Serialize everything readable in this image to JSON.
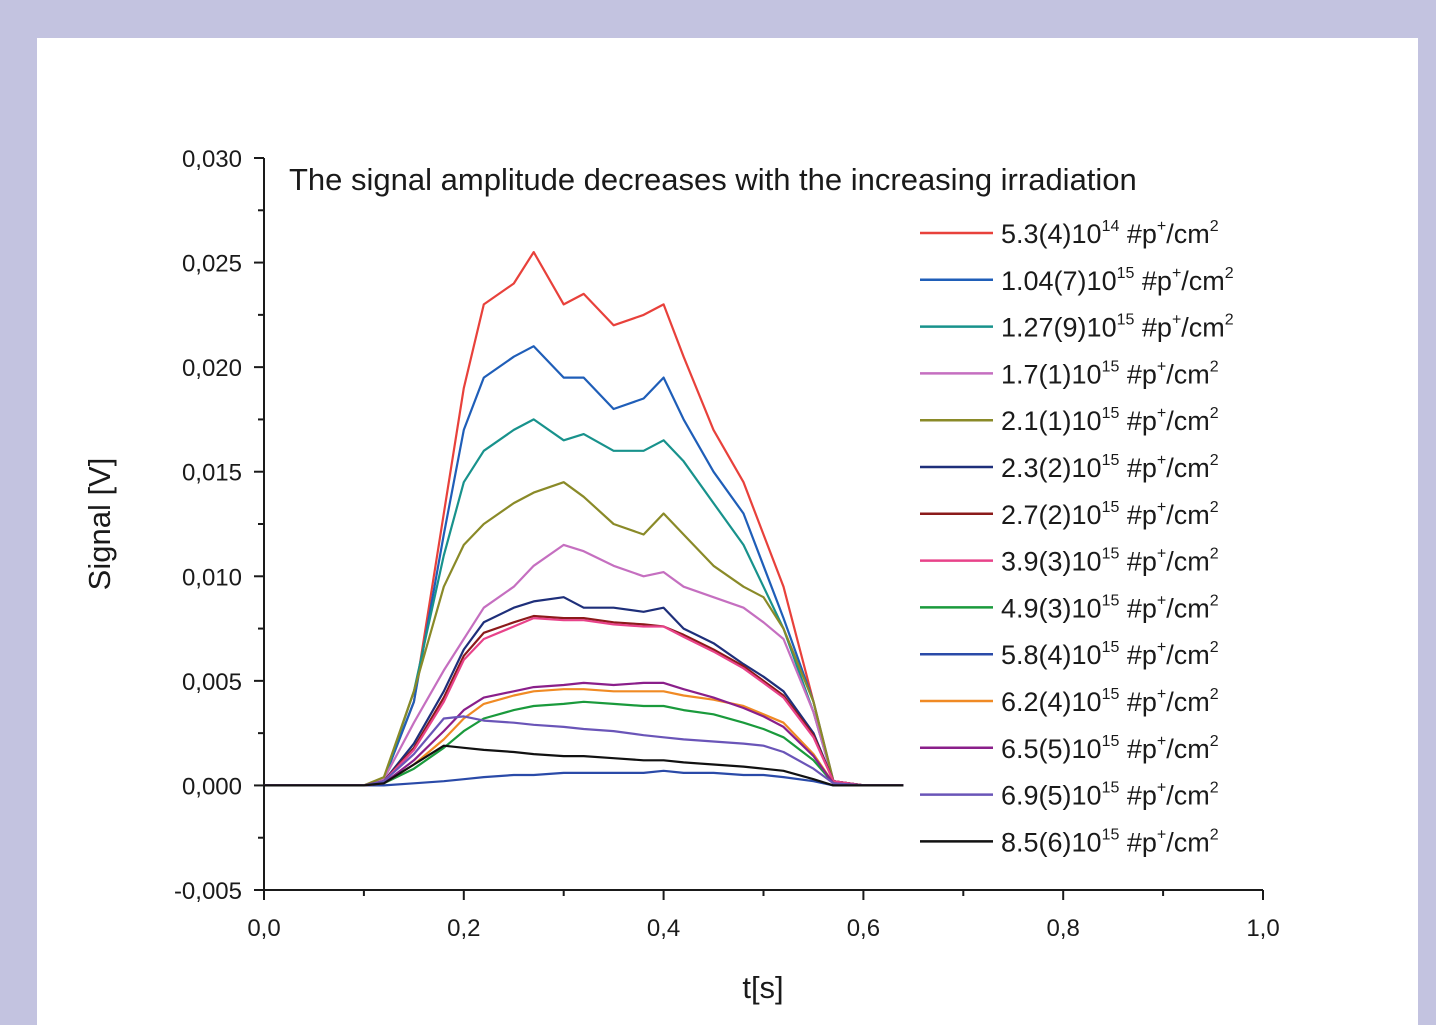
{
  "chart_data": {
    "type": "line",
    "title": "The signal amplitude decreases with the increasing irradiation",
    "xlabel": "t[s]",
    "ylabel": "Signal [V]",
    "xlim": [
      0.0,
      1.0
    ],
    "ylim": [
      -0.005,
      0.03
    ],
    "x_ticks": [
      "0,0",
      "0,2",
      "0,4",
      "0,6",
      "0,8",
      "1,0"
    ],
    "y_ticks": [
      "-0,005",
      "0,000",
      "0,005",
      "0,010",
      "0,015",
      "0,020",
      "0,025",
      "0,030"
    ],
    "legend_position": "right",
    "grid": false,
    "x": [
      0.0,
      0.1,
      0.12,
      0.15,
      0.18,
      0.2,
      0.22,
      0.25,
      0.27,
      0.3,
      0.32,
      0.35,
      0.38,
      0.4,
      0.42,
      0.45,
      0.48,
      0.5,
      0.52,
      0.55,
      0.57,
      0.6,
      0.64
    ],
    "series": [
      {
        "base": "5.3(4)10",
        "exp": "14",
        "unit_pre": " #p",
        "unit_sup": "+",
        "unit_mid": "/cm",
        "unit_sup2": "2",
        "color": "#e8413b",
        "values": [
          0.0,
          0.0,
          0.0003,
          0.004,
          0.013,
          0.019,
          0.023,
          0.024,
          0.0255,
          0.023,
          0.0235,
          0.022,
          0.0225,
          0.023,
          0.0205,
          0.017,
          0.0145,
          0.012,
          0.0095,
          0.004,
          0.0002,
          0.0,
          0.0
        ]
      },
      {
        "base": "1.04(7)10",
        "exp": "15",
        "unit_pre": " #p",
        "unit_sup": "+",
        "unit_mid": "/cm",
        "unit_sup2": "2",
        "color": "#1f5eb8",
        "values": [
          0.0,
          0.0,
          0.0003,
          0.004,
          0.012,
          0.017,
          0.0195,
          0.0205,
          0.021,
          0.0195,
          0.0195,
          0.018,
          0.0185,
          0.0195,
          0.0175,
          0.015,
          0.013,
          0.0105,
          0.008,
          0.004,
          0.0002,
          0.0,
          0.0
        ]
      },
      {
        "base": "1.27(9)10",
        "exp": "15",
        "unit_pre": " #p",
        "unit_sup": "+",
        "unit_mid": "/cm",
        "unit_sup2": "2",
        "color": "#18928c",
        "values": [
          0.0,
          0.0,
          0.0003,
          0.0045,
          0.011,
          0.0145,
          0.016,
          0.017,
          0.0175,
          0.0165,
          0.0168,
          0.016,
          0.016,
          0.0165,
          0.0155,
          0.0135,
          0.0115,
          0.0095,
          0.0075,
          0.0035,
          0.0002,
          0.0,
          0.0
        ]
      },
      {
        "base": "1.7(1)10",
        "exp": "15",
        "unit_pre": " #p",
        "unit_sup": "+",
        "unit_mid": "/cm",
        "unit_sup2": "2",
        "color": "#c56fc0",
        "values": [
          0.0,
          0.0,
          0.0003,
          0.003,
          0.0055,
          0.007,
          0.0085,
          0.0095,
          0.0105,
          0.0115,
          0.0112,
          0.0105,
          0.01,
          0.0102,
          0.0095,
          0.009,
          0.0085,
          0.0078,
          0.007,
          0.0035,
          0.0002,
          0.0,
          0.0
        ]
      },
      {
        "base": "2.1(1)10",
        "exp": "15",
        "unit_pre": " #p",
        "unit_sup": "+",
        "unit_mid": "/cm",
        "unit_sup2": "2",
        "color": "#8a8a28",
        "values": [
          0.0,
          0.0,
          0.0004,
          0.0045,
          0.0095,
          0.0115,
          0.0125,
          0.0135,
          0.014,
          0.0145,
          0.0138,
          0.0125,
          0.012,
          0.013,
          0.012,
          0.0105,
          0.0095,
          0.009,
          0.0075,
          0.004,
          0.0002,
          0.0,
          0.0
        ]
      },
      {
        "base": "2.3(2)10",
        "exp": "15",
        "unit_pre": " #p",
        "unit_sup": "+",
        "unit_mid": "/cm",
        "unit_sup2": "2",
        "color": "#1e2f7a",
        "values": [
          0.0,
          0.0,
          0.0002,
          0.002,
          0.0045,
          0.0065,
          0.0078,
          0.0085,
          0.0088,
          0.009,
          0.0085,
          0.0085,
          0.0083,
          0.0085,
          0.0075,
          0.0068,
          0.0058,
          0.0052,
          0.0045,
          0.0025,
          0.0002,
          0.0,
          0.0
        ]
      },
      {
        "base": "2.7(2)10",
        "exp": "15",
        "unit_pre": " #p",
        "unit_sup": "+",
        "unit_mid": "/cm",
        "unit_sup2": "2",
        "color": "#8b1a1a",
        "values": [
          0.0,
          0.0,
          0.0002,
          0.0018,
          0.0042,
          0.0062,
          0.0073,
          0.0078,
          0.0081,
          0.008,
          0.008,
          0.0078,
          0.0077,
          0.0076,
          0.0072,
          0.0065,
          0.0057,
          0.005,
          0.0043,
          0.0024,
          0.0002,
          0.0,
          0.0
        ]
      },
      {
        "base": "3.9(3)10",
        "exp": "15",
        "unit_pre": " #p",
        "unit_sup": "+",
        "unit_mid": "/cm",
        "unit_sup2": "2",
        "color": "#e8438a",
        "values": [
          0.0,
          0.0,
          0.0002,
          0.0017,
          0.004,
          0.006,
          0.007,
          0.0076,
          0.008,
          0.0079,
          0.0079,
          0.0077,
          0.0076,
          0.0076,
          0.0071,
          0.0064,
          0.0056,
          0.0049,
          0.0042,
          0.0023,
          0.0002,
          0.0,
          0.0
        ]
      },
      {
        "base": "4.9(3)10",
        "exp": "15",
        "unit_pre": " #p",
        "unit_sup": "+",
        "unit_mid": "/cm",
        "unit_sup2": "2",
        "color": "#1a9a3c",
        "values": [
          0.0,
          0.0,
          0.0001,
          0.0008,
          0.0018,
          0.0026,
          0.0032,
          0.0036,
          0.0038,
          0.0039,
          0.004,
          0.0039,
          0.0038,
          0.0038,
          0.0036,
          0.0034,
          0.003,
          0.0027,
          0.0023,
          0.0012,
          0.0001,
          0.0,
          0.0
        ]
      },
      {
        "base": "5.8(4)10",
        "exp": "15",
        "unit_pre": " #p",
        "unit_sup": "+",
        "unit_mid": "/cm",
        "unit_sup2": "2",
        "color": "#2a4aa8",
        "values": [
          0.0,
          0.0,
          0.0,
          0.0001,
          0.0002,
          0.0003,
          0.0004,
          0.0005,
          0.0005,
          0.0006,
          0.0006,
          0.0006,
          0.0006,
          0.0007,
          0.0006,
          0.0006,
          0.0005,
          0.0005,
          0.0004,
          0.0002,
          0.0,
          0.0,
          0.0
        ]
      },
      {
        "base": "6.2(4)10",
        "exp": "15",
        "unit_pre": " #p",
        "unit_sup": "+",
        "unit_mid": "/cm",
        "unit_sup2": "2",
        "color": "#f08a24",
        "values": [
          0.0,
          0.0,
          0.0001,
          0.001,
          0.0022,
          0.0032,
          0.0039,
          0.0043,
          0.0045,
          0.0046,
          0.0046,
          0.0045,
          0.0045,
          0.0045,
          0.0043,
          0.0041,
          0.0038,
          0.0034,
          0.003,
          0.0015,
          0.0001,
          0.0,
          0.0
        ]
      },
      {
        "base": "6.5(5)10",
        "exp": "15",
        "unit_pre": " #p",
        "unit_sup": "+",
        "unit_mid": "/cm",
        "unit_sup2": "2",
        "color": "#8a1f8a",
        "values": [
          0.0,
          0.0,
          0.0001,
          0.0012,
          0.0026,
          0.0036,
          0.0042,
          0.0045,
          0.0047,
          0.0048,
          0.0049,
          0.0048,
          0.0049,
          0.0049,
          0.0046,
          0.0042,
          0.0037,
          0.0033,
          0.0028,
          0.0014,
          0.0001,
          0.0,
          0.0
        ]
      },
      {
        "base": "6.9(5)10",
        "exp": "15",
        "unit_pre": " #p",
        "unit_sup": "+",
        "unit_mid": "/cm",
        "unit_sup2": "2",
        "color": "#6a55b8",
        "values": [
          0.0,
          0.0,
          0.0002,
          0.0015,
          0.0032,
          0.0033,
          0.0031,
          0.003,
          0.0029,
          0.0028,
          0.0027,
          0.0026,
          0.0024,
          0.0023,
          0.0022,
          0.0021,
          0.002,
          0.0019,
          0.0016,
          0.0008,
          0.0001,
          0.0,
          0.0
        ]
      },
      {
        "base": "8.5(6)10",
        "exp": "15",
        "unit_pre": " #p",
        "unit_sup": "+",
        "unit_mid": "/cm",
        "unit_sup2": "2",
        "color": "#111111",
        "values": [
          0.0,
          0.0,
          0.0001,
          0.001,
          0.0019,
          0.0018,
          0.0017,
          0.0016,
          0.0015,
          0.0014,
          0.0014,
          0.0013,
          0.0012,
          0.0012,
          0.0011,
          0.001,
          0.0009,
          0.0008,
          0.0007,
          0.0003,
          0.0,
          0.0,
          0.0
        ]
      }
    ]
  }
}
